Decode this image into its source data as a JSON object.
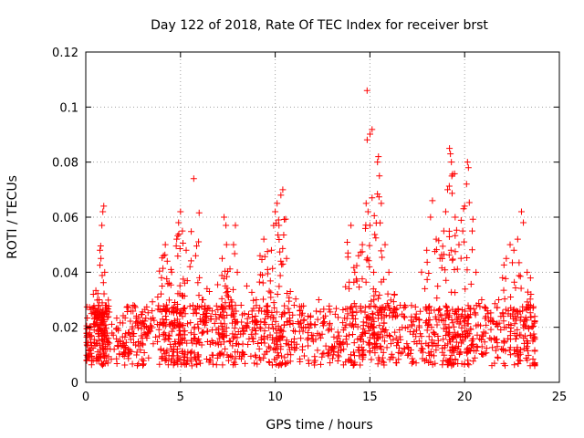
{
  "chart_data": {
    "type": "scatter",
    "title": "Day 122 of 2018, Rate Of TEC Index for receiver brst",
    "xlabel": "GPS time / hours",
    "ylabel": "ROTI / TECUs",
    "xlim": [
      0,
      25
    ],
    "ylim": [
      0,
      0.12
    ],
    "xticks": [
      0,
      5,
      10,
      15,
      20,
      25
    ],
    "xtick_labels": [
      "0",
      "5",
      "10",
      "15",
      "20",
      "25"
    ],
    "yticks": [
      0,
      0.02,
      0.04,
      0.06,
      0.08,
      0.1,
      0.12
    ],
    "ytick_labels": [
      "0",
      "0.02",
      "0.04",
      "0.06",
      "0.08",
      "0.1",
      "0.12"
    ],
    "grid": true,
    "marker": "+",
    "color": "#ff0000",
    "series": [
      {
        "name": "ROTI",
        "envelope_note": "dense scatter; x spans 0 to 23.7 h, most values 0.005-0.03 TECU/s, with bursts",
        "points": [
          [
            0.1,
            0.009
          ],
          [
            0.2,
            0.018
          ],
          [
            0.3,
            0.025
          ],
          [
            0.4,
            0.032
          ],
          [
            0.5,
            0.021
          ],
          [
            0.6,
            0.014
          ],
          [
            0.7,
            0.03
          ],
          [
            0.75,
            0.048
          ],
          [
            0.8,
            0.045
          ],
          [
            0.85,
            0.057
          ],
          [
            0.9,
            0.062
          ],
          [
            0.95,
            0.064
          ],
          [
            1.0,
            0.04
          ],
          [
            1.1,
            0.027
          ],
          [
            1.2,
            0.016
          ],
          [
            1.5,
            0.012
          ],
          [
            1.8,
            0.015
          ],
          [
            2.0,
            0.011
          ],
          [
            2.3,
            0.018
          ],
          [
            2.5,
            0.028
          ],
          [
            2.7,
            0.022
          ],
          [
            3.0,
            0.014
          ],
          [
            3.2,
            0.02
          ],
          [
            3.5,
            0.026
          ],
          [
            3.8,
            0.031
          ],
          [
            4.0,
            0.038
          ],
          [
            4.1,
            0.046
          ],
          [
            4.2,
            0.05
          ],
          [
            4.3,
            0.044
          ],
          [
            4.4,
            0.036
          ],
          [
            4.5,
            0.041
          ],
          [
            4.7,
            0.029
          ],
          [
            4.8,
            0.052
          ],
          [
            4.9,
            0.058
          ],
          [
            5.0,
            0.062
          ],
          [
            5.1,
            0.055
          ],
          [
            5.3,
            0.048
          ],
          [
            5.5,
            0.042
          ],
          [
            5.7,
            0.074
          ],
          [
            5.8,
            0.046
          ],
          [
            6.0,
            0.038
          ],
          [
            6.2,
            0.03
          ],
          [
            6.4,
            0.034
          ],
          [
            6.6,
            0.024
          ],
          [
            7.0,
            0.018
          ],
          [
            7.2,
            0.045
          ],
          [
            7.3,
            0.06
          ],
          [
            7.4,
            0.057
          ],
          [
            7.5,
            0.033
          ],
          [
            7.8,
            0.05
          ],
          [
            7.9,
            0.057
          ],
          [
            8.0,
            0.04
          ],
          [
            8.2,
            0.028
          ],
          [
            8.5,
            0.035
          ],
          [
            8.8,
            0.022
          ],
          [
            9.0,
            0.03
          ],
          [
            9.2,
            0.046
          ],
          [
            9.4,
            0.052
          ],
          [
            9.6,
            0.041
          ],
          [
            9.8,
            0.048
          ],
          [
            10.0,
            0.062
          ],
          [
            10.1,
            0.065
          ],
          [
            10.2,
            0.057
          ],
          [
            10.3,
            0.068
          ],
          [
            10.4,
            0.07
          ],
          [
            10.6,
            0.045
          ],
          [
            10.8,
            0.033
          ],
          [
            11.0,
            0.028
          ],
          [
            11.3,
            0.026
          ],
          [
            11.6,
            0.02
          ],
          [
            12.0,
            0.017
          ],
          [
            12.3,
            0.03
          ],
          [
            12.6,
            0.022
          ],
          [
            13.0,
            0.013
          ],
          [
            13.3,
            0.016
          ],
          [
            13.6,
            0.019
          ],
          [
            13.9,
            0.034
          ],
          [
            14.0,
            0.057
          ],
          [
            14.2,
            0.04
          ],
          [
            14.4,
            0.046
          ],
          [
            14.6,
            0.05
          ],
          [
            14.8,
            0.065
          ],
          [
            14.85,
            0.106
          ],
          [
            14.9,
            0.062
          ],
          [
            15.0,
            0.057
          ],
          [
            15.2,
            0.04
          ],
          [
            15.4,
            0.08
          ],
          [
            15.45,
            0.082
          ],
          [
            15.5,
            0.075
          ],
          [
            15.6,
            0.065
          ],
          [
            15.8,
            0.05
          ],
          [
            16.0,
            0.04
          ],
          [
            16.3,
            0.032
          ],
          [
            16.6,
            0.028
          ],
          [
            17.0,
            0.02
          ],
          [
            17.3,
            0.022
          ],
          [
            17.6,
            0.015
          ],
          [
            17.9,
            0.034
          ],
          [
            18.0,
            0.048
          ],
          [
            18.2,
            0.06
          ],
          [
            18.3,
            0.066
          ],
          [
            18.5,
            0.052
          ],
          [
            18.7,
            0.045
          ],
          [
            18.9,
            0.055
          ],
          [
            19.0,
            0.062
          ],
          [
            19.1,
            0.07
          ],
          [
            19.2,
            0.085
          ],
          [
            19.25,
            0.083
          ],
          [
            19.3,
            0.08
          ],
          [
            19.5,
            0.06
          ],
          [
            19.7,
            0.05
          ],
          [
            19.9,
            0.055
          ],
          [
            20.0,
            0.064
          ],
          [
            20.1,
            0.072
          ],
          [
            20.15,
            0.08
          ],
          [
            20.2,
            0.078
          ],
          [
            20.4,
            0.055
          ],
          [
            20.6,
            0.04
          ],
          [
            20.9,
            0.03
          ],
          [
            21.2,
            0.026
          ],
          [
            21.5,
            0.022
          ],
          [
            21.8,
            0.03
          ],
          [
            22.0,
            0.038
          ],
          [
            22.2,
            0.045
          ],
          [
            22.4,
            0.05
          ],
          [
            22.6,
            0.048
          ],
          [
            22.8,
            0.052
          ],
          [
            23.0,
            0.062
          ],
          [
            23.1,
            0.058
          ],
          [
            23.3,
            0.04
          ],
          [
            23.5,
            0.032
          ],
          [
            23.6,
            0.015
          ],
          [
            23.7,
            0.006
          ]
        ]
      }
    ]
  }
}
